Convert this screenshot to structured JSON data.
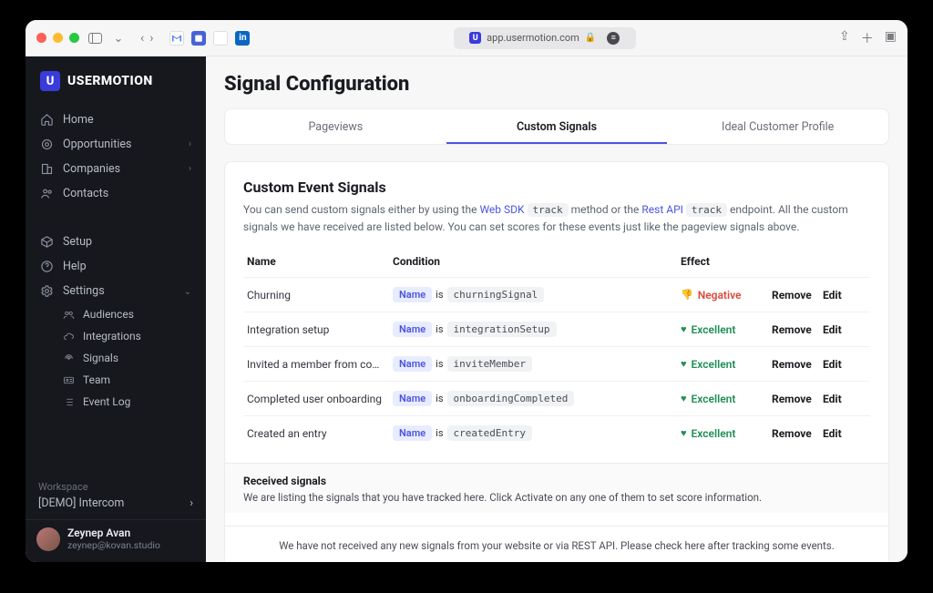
{
  "browser": {
    "url": "app.usermotion.com",
    "traffic_colors": [
      "#ff5f57",
      "#febc2e",
      "#28c840"
    ]
  },
  "brand": {
    "name": "USERMOTION",
    "mark": "U"
  },
  "sidebar": {
    "items": [
      {
        "label": "Home"
      },
      {
        "label": "Opportunities",
        "chev": true
      },
      {
        "label": "Companies",
        "chev": true
      },
      {
        "label": "Contacts"
      }
    ],
    "lower": [
      {
        "label": "Setup"
      },
      {
        "label": "Help"
      },
      {
        "label": "Settings",
        "chev": true,
        "expanded": true
      }
    ],
    "settings_sub": [
      {
        "label": "Audiences"
      },
      {
        "label": "Integrations"
      },
      {
        "label": "Signals"
      },
      {
        "label": "Team"
      },
      {
        "label": "Event Log"
      }
    ],
    "workspace_label": "Workspace",
    "workspace_name": "[DEMO] Intercom"
  },
  "user": {
    "name": "Zeynep Avan",
    "email": "zeynep@kovan.studio"
  },
  "page": {
    "title": "Signal Configuration",
    "tabs": [
      {
        "label": "Pageviews"
      },
      {
        "label": "Custom Signals",
        "active": true
      },
      {
        "label": "Ideal Customer Profile"
      }
    ],
    "section_title": "Custom Event Signals",
    "desc_parts": {
      "p1": "You can send custom signals either by using the ",
      "link1": "Web SDK",
      "track": "track",
      "p2": " method or the ",
      "link2": "Rest API",
      "p3": " endpoint. All the custom signals we have received are listed below. You can set scores for these events just like the pageview signals above."
    },
    "columns": {
      "name": "Name",
      "condition": "Condition",
      "effect": "Effect"
    },
    "cond_tokens": {
      "name_pill": "Name",
      "is": "is"
    },
    "rows": [
      {
        "name": "Churning",
        "event": "churningSignal",
        "effect": "Negative",
        "effect_kind": "neg"
      },
      {
        "name": "Integration setup",
        "event": "integrationSetup",
        "effect": "Excellent",
        "effect_kind": "exc"
      },
      {
        "name": "Invited a member from comp…",
        "event": "inviteMember",
        "effect": "Excellent",
        "effect_kind": "exc"
      },
      {
        "name": "Completed user onboarding",
        "event": "onboardingCompleted",
        "effect": "Excellent",
        "effect_kind": "exc"
      },
      {
        "name": "Created an entry",
        "event": "createdEntry",
        "effect": "Excellent",
        "effect_kind": "exc"
      }
    ],
    "actions": {
      "remove": "Remove",
      "edit": "Edit"
    },
    "received": {
      "title": "Received signals",
      "body": "We are listing the signals that you have tracked here. Click Activate on any one of them to set score information."
    },
    "empty": "We have not received any new signals from your website or via REST API. Please check here after tracking some events."
  },
  "colors": {
    "sidebar_bg": "#16181d",
    "accent": "#4c54e0",
    "negative": "#d94a3a",
    "excellent": "#1f8f55",
    "main_bg": "#f7f7f8",
    "panel_border": "#ececef"
  }
}
